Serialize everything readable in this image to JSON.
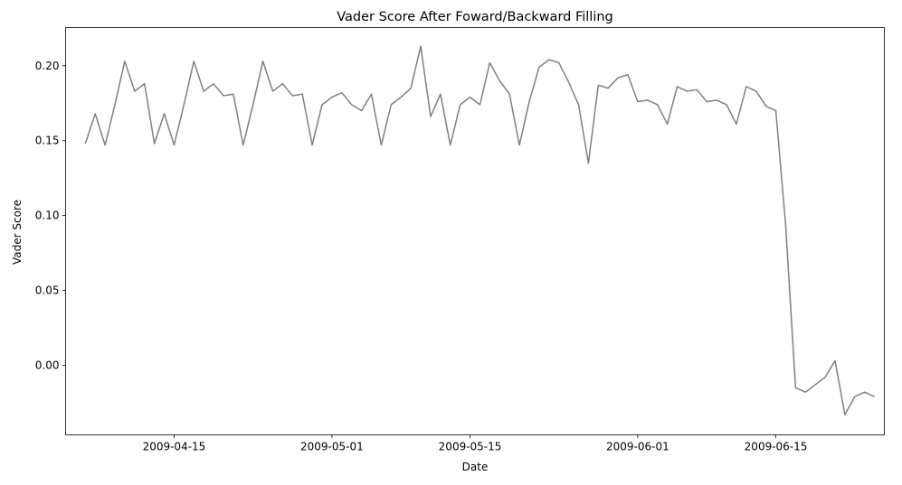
{
  "chart_data": {
    "type": "line",
    "title": "Vader Score After Foward/Backward Filling",
    "xlabel": "Date",
    "ylabel": "Vader Score",
    "x_start": "2009-04-06",
    "x_range": [
      "2009-04-04",
      "2009-06-26"
    ],
    "ylim": [
      -0.0465,
      0.2255
    ],
    "grid": false,
    "legend": "none",
    "x_ticks": [
      {
        "date": "2009-04-15",
        "label": "2009-04-15"
      },
      {
        "date": "2009-05-01",
        "label": "2009-05-01"
      },
      {
        "date": "2009-05-15",
        "label": "2009-05-15"
      },
      {
        "date": "2009-06-01",
        "label": "2009-06-01"
      },
      {
        "date": "2009-06-15",
        "label": "2009-06-15"
      }
    ],
    "y_ticks": [
      {
        "value": 0.0,
        "label": "0.00"
      },
      {
        "value": 0.05,
        "label": "0.05"
      },
      {
        "value": 0.1,
        "label": "0.10"
      },
      {
        "value": 0.15,
        "label": "0.15"
      },
      {
        "value": 0.2,
        "label": "0.20"
      }
    ],
    "series": [
      {
        "color": "#808080",
        "values": [
          0.148,
          0.168,
          0.147,
          0.174,
          0.203,
          0.183,
          0.188,
          0.148,
          0.168,
          0.147,
          0.174,
          0.203,
          0.183,
          0.188,
          0.18,
          0.181,
          0.147,
          0.174,
          0.203,
          0.183,
          0.188,
          0.18,
          0.181,
          0.147,
          0.174,
          0.179,
          0.182,
          0.174,
          0.17,
          0.181,
          0.147,
          0.174,
          0.179,
          0.185,
          0.213,
          0.166,
          0.181,
          0.147,
          0.174,
          0.179,
          0.174,
          0.202,
          0.19,
          0.181,
          0.147,
          0.176,
          0.199,
          0.204,
          0.202,
          0.189,
          0.174,
          0.135,
          0.187,
          0.185,
          0.192,
          0.194,
          0.176,
          0.177,
          0.174,
          0.161,
          0.186,
          0.183,
          0.184,
          0.176,
          0.177,
          0.174,
          0.161,
          0.186,
          0.183,
          0.173,
          0.17,
          0.093,
          -0.015,
          -0.018,
          -0.013,
          -0.008,
          0.003,
          -0.033,
          -0.021,
          -0.018,
          -0.021
        ]
      }
    ]
  }
}
